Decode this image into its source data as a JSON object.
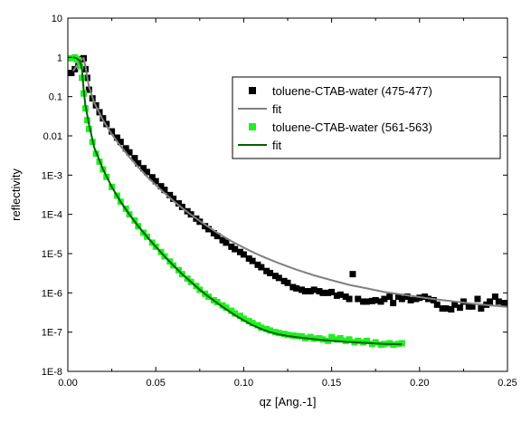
{
  "chart_data": {
    "type": "scatter",
    "xlabel": "qz [Ang.-1]",
    "ylabel": "reflectivity",
    "xlim": [
      0.0,
      0.25
    ],
    "ylim": [
      1e-08,
      10
    ],
    "yscale": "log",
    "grid": false,
    "legend_position": "top-right",
    "x_ticks": [
      0.0,
      0.05,
      0.1,
      0.15,
      0.2,
      0.25
    ],
    "x_tick_labels": [
      "0.00",
      "0.05",
      "0.10",
      "0.15",
      "0.20",
      "0.25"
    ],
    "y_ticks": [
      1e-08,
      1e-07,
      1e-06,
      1e-05,
      0.0001,
      0.001,
      0.01,
      0.1,
      1,
      10
    ],
    "y_tick_labels": [
      "1E-8",
      "1E-7",
      "1E-6",
      "1E-5",
      "1E-4",
      "1E-3",
      "0.01",
      "0.1",
      "1",
      "10"
    ],
    "legend": [
      {
        "label": "toluene-CTAB-water (475-477)",
        "kind": "marker",
        "color": "#000000"
      },
      {
        "label": "fit",
        "kind": "line",
        "color": "#808080"
      },
      {
        "label": "toluene-CTAB-water (561-563)",
        "kind": "marker",
        "color": "#22ee22"
      },
      {
        "label": "fit",
        "kind": "line",
        "color": "#006400"
      }
    ],
    "series": [
      {
        "name": "toluene-CTAB-water (475-477)",
        "style": "marker",
        "color": "#000000",
        "x": [
          0.002,
          0.004,
          0.006,
          0.008,
          0.009,
          0.01,
          0.011,
          0.012,
          0.014,
          0.016,
          0.018,
          0.02,
          0.022,
          0.025,
          0.028,
          0.03,
          0.033,
          0.035,
          0.038,
          0.04,
          0.043,
          0.045,
          0.048,
          0.05,
          0.053,
          0.055,
          0.058,
          0.06,
          0.063,
          0.065,
          0.068,
          0.07,
          0.073,
          0.075,
          0.078,
          0.08,
          0.083,
          0.085,
          0.088,
          0.09,
          0.093,
          0.095,
          0.098,
          0.1,
          0.103,
          0.105,
          0.108,
          0.11,
          0.113,
          0.115,
          0.118,
          0.12,
          0.123,
          0.125,
          0.128,
          0.13,
          0.133,
          0.135,
          0.138,
          0.14,
          0.143,
          0.145,
          0.148,
          0.15,
          0.153,
          0.155,
          0.158,
          0.16,
          0.162,
          0.165,
          0.168,
          0.17,
          0.173,
          0.175,
          0.178,
          0.18,
          0.183,
          0.185,
          0.188,
          0.19,
          0.193,
          0.195,
          0.198,
          0.2,
          0.203,
          0.205,
          0.208,
          0.21,
          0.213,
          0.215,
          0.218,
          0.22,
          0.223,
          0.225,
          0.228,
          0.23,
          0.233,
          0.235,
          0.238,
          0.24,
          0.243,
          0.245,
          0.248
        ],
        "y": [
          0.4,
          0.5,
          0.7,
          0.9,
          0.95,
          0.5,
          0.3,
          0.15,
          0.09,
          0.06,
          0.04,
          0.028,
          0.02,
          0.013,
          0.009,
          0.007,
          0.0048,
          0.0038,
          0.0027,
          0.002,
          0.0015,
          0.0012,
          0.00088,
          0.0007,
          0.00052,
          0.00042,
          0.00031,
          0.00025,
          0.00019,
          0.000155,
          0.00012,
          0.0001,
          7.8e-05,
          6.5e-05,
          5e-05,
          4.2e-05,
          3.3e-05,
          2.8e-05,
          2.2e-05,
          1.9e-05,
          1.5e-05,
          1.3e-05,
          1.1e-05,
          9.5e-06,
          7.5e-06,
          6.5e-06,
          5.2e-06,
          4.5e-06,
          3.6e-06,
          3.2e-06,
          2.7e-06,
          2.4e-06,
          2e-06,
          1.8e-06,
          1.4e-06,
          1.3e-06,
          1.2e-06,
          1.1e-06,
          1.1e-06,
          1.2e-06,
          1.1e-06,
          1e-06,
          1e-06,
          1.05e-06,
          8.5e-07,
          9e-07,
          8e-07,
          7e-07,
          3e-06,
          7e-07,
          6e-07,
          6e-07,
          6.2e-07,
          6.5e-07,
          6e-07,
          7e-07,
          8e-07,
          5.5e-07,
          8e-07,
          7e-07,
          8e-07,
          6.5e-07,
          7e-07,
          7.5e-07,
          8e-07,
          7e-07,
          6.5e-07,
          5e-07,
          4e-07,
          4e-07,
          3.8e-07,
          5e-07,
          4.2e-07,
          6e-07,
          4.5e-07,
          4.5e-07,
          7e-07,
          4e-07,
          5e-07,
          6e-07,
          8e-07,
          6e-07,
          5.5e-07
        ]
      },
      {
        "name": "fit",
        "style": "line",
        "color": "#808080",
        "x": [
          0.003,
          0.006,
          0.008,
          0.009,
          0.01,
          0.012,
          0.015,
          0.02,
          0.025,
          0.03,
          0.035,
          0.04,
          0.045,
          0.05,
          0.055,
          0.06,
          0.065,
          0.07,
          0.075,
          0.08,
          0.085,
          0.09,
          0.095,
          0.1,
          0.105,
          0.11,
          0.115,
          0.12,
          0.125,
          0.13,
          0.14,
          0.15,
          0.16,
          0.17,
          0.18,
          0.19,
          0.2,
          0.21,
          0.22,
          0.23,
          0.24,
          0.25
        ],
        "y": [
          0.45,
          0.7,
          0.9,
          0.95,
          0.6,
          0.18,
          0.07,
          0.025,
          0.011,
          0.0055,
          0.0029,
          0.0016,
          0.00092,
          0.00056,
          0.00035,
          0.00022,
          0.000145,
          9.8e-05,
          6.8e-05,
          4.8e-05,
          3.4e-05,
          2.5e-05,
          1.85e-05,
          1.42e-05,
          1.1e-05,
          8.7e-06,
          7e-06,
          5.7e-06,
          4.7e-06,
          3.9e-06,
          2.8e-06,
          2.1e-06,
          1.6e-06,
          1.3e-06,
          1.05e-06,
          9e-07,
          7.8e-07,
          6.8e-07,
          6e-07,
          5.3e-07,
          4.8e-07,
          4.4e-07
        ]
      },
      {
        "name": "toluene-CTAB-water (561-563)",
        "style": "marker",
        "color": "#22ee22",
        "x": [
          0.002,
          0.004,
          0.005,
          0.006,
          0.007,
          0.008,
          0.009,
          0.01,
          0.011,
          0.012,
          0.014,
          0.016,
          0.018,
          0.02,
          0.022,
          0.025,
          0.028,
          0.03,
          0.033,
          0.035,
          0.038,
          0.04,
          0.043,
          0.045,
          0.048,
          0.05,
          0.053,
          0.055,
          0.058,
          0.06,
          0.063,
          0.065,
          0.068,
          0.07,
          0.073,
          0.075,
          0.078,
          0.08,
          0.083,
          0.085,
          0.088,
          0.09,
          0.093,
          0.095,
          0.098,
          0.1,
          0.103,
          0.105,
          0.108,
          0.11,
          0.113,
          0.115,
          0.118,
          0.12,
          0.123,
          0.125,
          0.128,
          0.13,
          0.133,
          0.135,
          0.138,
          0.14,
          0.143,
          0.145,
          0.148,
          0.15,
          0.153,
          0.155,
          0.158,
          0.16,
          0.163,
          0.165,
          0.168,
          0.17,
          0.173,
          0.175,
          0.178,
          0.18,
          0.183,
          0.185,
          0.188,
          0.19
        ],
        "y": [
          0.95,
          1.0,
          0.9,
          0.85,
          0.6,
          0.3,
          0.12,
          0.05,
          0.025,
          0.015,
          0.007,
          0.0035,
          0.0022,
          0.0014,
          0.0009,
          0.0005,
          0.0003,
          0.00021,
          0.00014,
          0.0001,
          7e-05,
          5e-05,
          3.4e-05,
          2.7e-05,
          1.9e-05,
          1.5e-05,
          1.1e-05,
          8.5e-06,
          6.3e-06,
          5e-06,
          3.8e-06,
          3e-06,
          2.3e-06,
          1.9e-06,
          1.5e-06,
          1.2e-06,
          9.5e-07,
          8e-07,
          6.5e-07,
          5.8e-07,
          4.8e-07,
          4.2e-07,
          3.5e-07,
          3e-07,
          2.6e-07,
          2.2e-07,
          1.9e-07,
          1.7e-07,
          1.5e-07,
          1.3e-07,
          1.2e-07,
          1.1e-07,
          1e-07,
          9.5e-08,
          9e-08,
          8.5e-08,
          8.2e-08,
          8e-08,
          7.8e-08,
          7e-08,
          7.5e-08,
          6.8e-08,
          7e-08,
          6.5e-08,
          6e-08,
          7.5e-08,
          6.5e-08,
          7e-08,
          6e-08,
          6.5e-08,
          5.5e-08,
          6e-08,
          5.5e-08,
          6e-08,
          5e-08,
          5.5e-08,
          4.8e-08,
          5e-08,
          5.2e-08,
          4.8e-08,
          5e-08,
          5.2e-08
        ]
      },
      {
        "name": "fit",
        "style": "line",
        "color": "#006400",
        "x": [
          0.003,
          0.005,
          0.007,
          0.008,
          0.009,
          0.01,
          0.012,
          0.015,
          0.02,
          0.025,
          0.03,
          0.035,
          0.04,
          0.045,
          0.05,
          0.055,
          0.06,
          0.065,
          0.07,
          0.075,
          0.08,
          0.085,
          0.09,
          0.095,
          0.1,
          0.105,
          0.11,
          0.115,
          0.12,
          0.125,
          0.13,
          0.14,
          0.15,
          0.16,
          0.17,
          0.18,
          0.19
        ],
        "y": [
          1.0,
          0.95,
          0.8,
          0.5,
          0.15,
          0.06,
          0.02,
          0.005,
          0.0014,
          0.0005,
          0.00021,
          0.0001,
          5e-05,
          2.7e-05,
          1.5e-05,
          8.5e-06,
          5e-06,
          3e-06,
          1.9e-06,
          1.2e-06,
          8e-07,
          5.5e-07,
          3.8e-07,
          2.7e-07,
          2e-07,
          1.5e-07,
          1.2e-07,
          1e-07,
          8.8e-08,
          8e-08,
          7.4e-08,
          6.6e-08,
          6e-08,
          5.6e-08,
          5.3e-08,
          5e-08,
          4.9e-08
        ]
      }
    ]
  }
}
